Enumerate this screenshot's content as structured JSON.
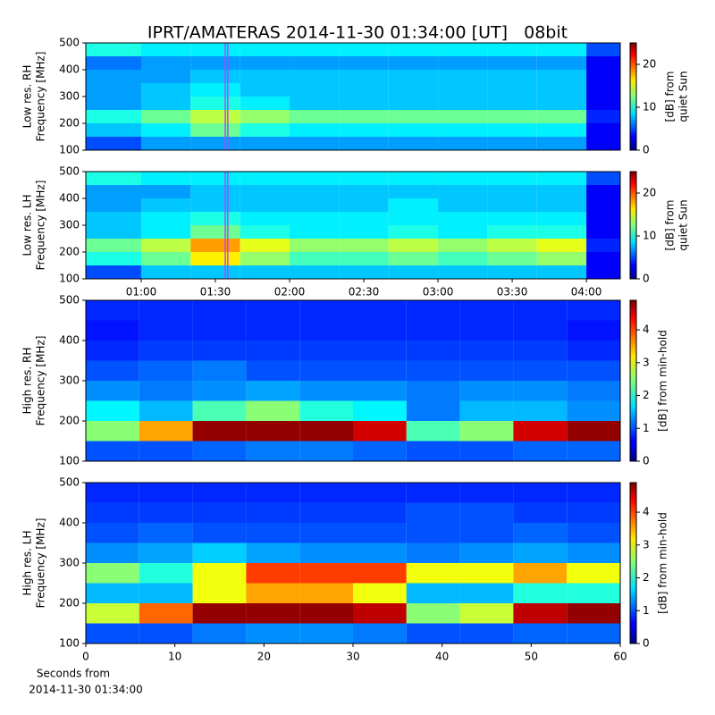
{
  "title": "IPRT/AMATERAS 2014-11-30 01:34:00 [UT]   08bit",
  "xlabel": [
    "Seconds from",
    "2014-11-30 01:34:00"
  ],
  "chart_data": [
    {
      "type": "heatmap",
      "ylabel": [
        "Low res. RH",
        "Frequency [MHz]"
      ],
      "xlim": [
        37.6,
        253.7
      ],
      "ylim": [
        100,
        500
      ],
      "yticks": [
        100,
        200,
        300,
        400,
        500
      ],
      "x_bins": [
        37.6,
        60,
        80,
        100,
        120,
        140,
        160,
        180,
        200,
        220,
        240,
        253.7
      ],
      "y_bins": [
        100,
        150,
        200,
        250,
        300,
        350,
        400,
        450,
        500
      ],
      "z": [
        [
          5,
          7,
          7,
          7,
          7,
          7,
          7,
          7,
          7,
          7,
          3
        ],
        [
          8,
          9,
          12,
          10,
          9,
          9,
          9,
          9,
          9,
          9,
          3
        ],
        [
          10,
          12,
          14,
          13,
          12,
          12,
          12,
          12,
          12,
          12,
          4
        ],
        [
          7,
          8,
          10,
          9,
          8,
          8,
          8,
          8,
          8,
          8,
          3
        ],
        [
          7,
          8,
          9,
          8,
          8,
          8,
          8,
          8,
          8,
          8,
          3
        ],
        [
          7,
          7,
          8,
          8,
          8,
          8,
          8,
          8,
          8,
          8,
          3
        ],
        [
          6,
          7,
          7,
          7,
          7,
          7,
          7,
          7,
          7,
          7,
          3
        ],
        [
          10,
          9,
          9,
          9,
          9,
          9,
          9,
          9,
          9,
          9,
          5
        ]
      ],
      "highlight": [
        94,
        95
      ],
      "highlight_color": "#c040ff",
      "colorbar": {
        "label": [
          "[dB] from",
          "quiet Sun"
        ],
        "clim": [
          0,
          25
        ],
        "ticks": [
          0,
          10,
          20
        ]
      }
    },
    {
      "type": "heatmap",
      "ylabel": [
        "Low res. LH",
        "Frequency [MHz]"
      ],
      "xlim": [
        37.6,
        253.7
      ],
      "ylim": [
        100,
        500
      ],
      "yticks": [
        100,
        200,
        300,
        400,
        500
      ],
      "xticks": [
        {
          "value": 60,
          "label": "01:00"
        },
        {
          "value": 90,
          "label": "01:30"
        },
        {
          "value": 120,
          "label": "02:00"
        },
        {
          "value": 150,
          "label": "02:30"
        },
        {
          "value": 180,
          "label": "03:00"
        },
        {
          "value": 210,
          "label": "03:30"
        },
        {
          "value": 240,
          "label": "04:00"
        }
      ],
      "x_bins": [
        37.6,
        60,
        80,
        100,
        120,
        140,
        160,
        180,
        200,
        220,
        240,
        253.7
      ],
      "y_bins": [
        100,
        150,
        200,
        250,
        300,
        350,
        400,
        450,
        500
      ],
      "z": [
        [
          5,
          8,
          8,
          8,
          8,
          8,
          8,
          8,
          8,
          8,
          3
        ],
        [
          10,
          12,
          16,
          13,
          11,
          11,
          12,
          11,
          12,
          13,
          3
        ],
        [
          12,
          14,
          18,
          15,
          13,
          13,
          14,
          13,
          14,
          15,
          4
        ],
        [
          8,
          9,
          12,
          10,
          9,
          9,
          10,
          9,
          10,
          10,
          3
        ],
        [
          8,
          9,
          10,
          9,
          9,
          9,
          9,
          9,
          9,
          9,
          3
        ],
        [
          7,
          8,
          8,
          8,
          8,
          8,
          9,
          8,
          8,
          8,
          3
        ],
        [
          7,
          7,
          8,
          8,
          8,
          8,
          8,
          8,
          8,
          8,
          3
        ],
        [
          10,
          9,
          9,
          9,
          9,
          9,
          9,
          9,
          9,
          9,
          5
        ]
      ],
      "highlight": [
        94,
        95
      ],
      "highlight_color": "#c040ff",
      "colorbar": {
        "label": [
          "[dB] from",
          "quiet Sun"
        ],
        "clim": [
          0,
          25
        ],
        "ticks": [
          0,
          10,
          20
        ]
      }
    },
    {
      "type": "heatmap",
      "ylabel": [
        "High res. RH",
        "Frequency [MHz]"
      ],
      "xlim": [
        0,
        60
      ],
      "ylim": [
        100,
        500
      ],
      "yticks": [
        100,
        200,
        300,
        400,
        500
      ],
      "x_bins": [
        0,
        6,
        12,
        18,
        24,
        30,
        36,
        42,
        48,
        54,
        60
      ],
      "y_bins": [
        100,
        150,
        200,
        250,
        300,
        350,
        400,
        450,
        500
      ],
      "z": [
        [
          1,
          1,
          1.1,
          1.2,
          1.2,
          1.1,
          1,
          1,
          1.1,
          1.1
        ],
        [
          2.5,
          3.5,
          4.8,
          4.8,
          4.8,
          4.5,
          2.2,
          2.5,
          4.5,
          4.8
        ],
        [
          1.8,
          1.5,
          2.2,
          2.5,
          2,
          1.8,
          1.2,
          1.5,
          1.5,
          1.3
        ],
        [
          1.3,
          1.2,
          1.3,
          1.4,
          1.3,
          1.3,
          1.2,
          1.3,
          1.3,
          1.2
        ],
        [
          1,
          1.1,
          1.2,
          1,
          1,
          1,
          1,
          1,
          1,
          1
        ],
        [
          0.8,
          0.9,
          0.9,
          0.9,
          0.9,
          0.9,
          0.9,
          0.9,
          0.9,
          0.8
        ],
        [
          0.7,
          0.8,
          0.8,
          0.8,
          0.8,
          0.8,
          0.8,
          0.8,
          0.8,
          0.7
        ],
        [
          0.8,
          0.8,
          0.8,
          0.8,
          0.8,
          0.8,
          0.8,
          0.8,
          0.8,
          0.8
        ]
      ],
      "colorbar": {
        "label": [
          "[dB] from min-hold"
        ],
        "clim": [
          0,
          4.9
        ],
        "ticks": [
          0,
          1,
          2,
          3,
          4
        ]
      }
    },
    {
      "type": "heatmap",
      "ylabel": [
        "High res. LH",
        "Frequency [MHz]"
      ],
      "xlim": [
        0,
        60
      ],
      "ylim": [
        100,
        500
      ],
      "yticks": [
        100,
        200,
        300,
        400,
        500
      ],
      "xticks": [
        0,
        10,
        20,
        30,
        40,
        50,
        60
      ],
      "x_bins": [
        0,
        6,
        12,
        18,
        24,
        30,
        36,
        42,
        48,
        54,
        60
      ],
      "y_bins": [
        100,
        150,
        200,
        250,
        300,
        350,
        400,
        450,
        500
      ],
      "z": [
        [
          1,
          1,
          1.2,
          1.3,
          1.3,
          1.2,
          1,
          1,
          1.1,
          1.1
        ],
        [
          2.8,
          3.8,
          4.8,
          4.8,
          4.8,
          4.6,
          2.5,
          2.8,
          4.6,
          4.8
        ],
        [
          1.5,
          1.5,
          3,
          3.5,
          3.5,
          3,
          1.5,
          1.5,
          2,
          2
        ],
        [
          2.5,
          2,
          3,
          4,
          4,
          4,
          3,
          3,
          3.5,
          3
        ],
        [
          1.3,
          1.4,
          1.6,
          1.4,
          1.3,
          1.3,
          1.2,
          1.3,
          1.4,
          1.3
        ],
        [
          1,
          1.1,
          1,
          1,
          1,
          1,
          1,
          1,
          1.1,
          1
        ],
        [
          0.9,
          0.9,
          0.9,
          0.9,
          0.9,
          0.9,
          1,
          1,
          0.9,
          0.9
        ],
        [
          0.8,
          0.8,
          0.8,
          0.8,
          0.8,
          0.8,
          0.8,
          0.8,
          0.8,
          0.8
        ]
      ],
      "colorbar": {
        "label": [
          "[dB] from min-hold"
        ],
        "clim": [
          0,
          4.9
        ],
        "ticks": [
          0,
          1,
          2,
          3,
          4
        ]
      }
    }
  ]
}
